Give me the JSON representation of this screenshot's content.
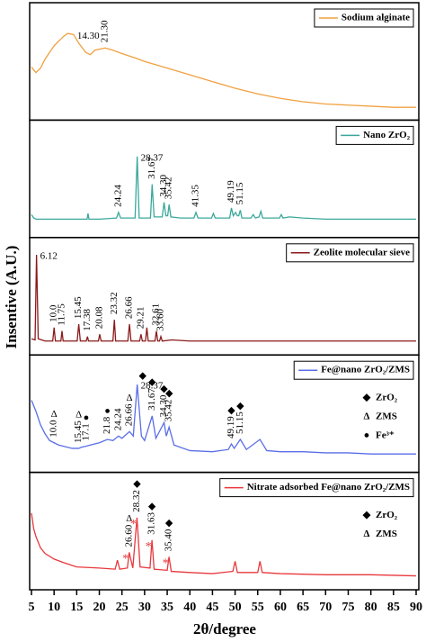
{
  "chart_data": {
    "type": "line",
    "xlabel": "2θ/degree",
    "ylabel": "Insentive (A.U.)",
    "xlim": [
      5,
      90
    ],
    "xticks": [
      5,
      10,
      15,
      20,
      25,
      30,
      35,
      40,
      45,
      50,
      55,
      60,
      65,
      70,
      75,
      80,
      85,
      90
    ],
    "panels": [
      {
        "name": "Sodium alginate",
        "color": "#f0a040",
        "ylim": [
          0,
          100
        ],
        "x": [
          5,
          6,
          7,
          8,
          10,
          12,
          13,
          14.3,
          15.5,
          17,
          18,
          19,
          21.3,
          23,
          25,
          28,
          30,
          35,
          40,
          45,
          50,
          55,
          60,
          65,
          70,
          75,
          80,
          85,
          90
        ],
        "values": [
          45,
          40,
          44,
          52,
          64,
          72,
          75,
          74,
          66,
          58,
          56,
          60,
          62,
          60,
          57,
          53,
          50,
          44,
          38,
          32,
          26,
          21,
          17,
          14,
          12,
          11,
          10,
          9,
          9
        ],
        "annotations": [
          {
            "x": 14.3,
            "label": "14.30"
          },
          {
            "x": 21.3,
            "label": "21.30"
          }
        ]
      },
      {
        "name": "Nano ZrO₂",
        "color": "#3aa89a",
        "ylim": [
          0,
          100
        ],
        "x": [
          5,
          5.5,
          6,
          8,
          10,
          15,
          17.3,
          17.5,
          17.7,
          20,
          23.8,
          24.24,
          24.7,
          27.9,
          28.37,
          28.8,
          30,
          31.3,
          31.67,
          32.1,
          33.9,
          34.3,
          34.7,
          35.1,
          35.42,
          35.8,
          38,
          40.9,
          41.35,
          41.8,
          44.8,
          45.2,
          45.6,
          48.8,
          49.19,
          49.6,
          50.1,
          50.5,
          50.8,
          51.15,
          51.5,
          53.5,
          54,
          54.5,
          55.3,
          55.7,
          56.1,
          59.8,
          60.2,
          60.6,
          62,
          65,
          70,
          75,
          80,
          85,
          90
        ],
        "values": [
          18,
          15,
          14,
          14,
          14,
          14,
          14,
          19,
          14,
          14,
          15,
          20,
          15,
          15,
          70,
          15,
          15,
          15,
          45,
          16,
          16,
          29,
          17,
          17,
          27,
          16,
          15,
          15,
          20,
          15,
          15,
          19,
          15,
          15,
          24,
          17,
          20,
          17,
          17,
          22,
          15,
          15,
          18,
          15,
          16,
          21,
          15,
          15,
          18,
          15,
          16,
          15,
          14,
          14,
          14,
          14,
          14
        ],
        "annotations": [
          {
            "x": 24.24,
            "label": "24.24"
          },
          {
            "x": 28.37,
            "label": "28.37"
          },
          {
            "x": 31.67,
            "label": "31.67"
          },
          {
            "x": 34.3,
            "label": "34.30"
          },
          {
            "x": 35.42,
            "label": "35.42"
          },
          {
            "x": 41.35,
            "label": "41.35"
          },
          {
            "x": 49.19,
            "label": "49.19"
          },
          {
            "x": 51.15,
            "label": "51.15"
          }
        ]
      },
      {
        "name": "Zeolite molecular sieve",
        "color": "#8b1a1a",
        "ylim": [
          0,
          100
        ],
        "x": [
          5,
          5.8,
          6.12,
          6.5,
          8,
          9.7,
          10,
          10.3,
          11.5,
          11.75,
          12,
          15.1,
          15.45,
          15.8,
          17.1,
          17.38,
          17.6,
          19.8,
          20.08,
          20.4,
          23,
          23.32,
          23.6,
          26.3,
          26.66,
          27,
          28.9,
          29.21,
          29.5,
          30.2,
          30.5,
          30.8,
          32.3,
          32.61,
          32.9,
          33.3,
          33.6,
          33.9,
          36,
          40,
          50,
          60,
          70,
          80,
          90
        ],
        "values": [
          12,
          11,
          87,
          12,
          10,
          10,
          22,
          10,
          10,
          19,
          10,
          10,
          25,
          10,
          10,
          14,
          10,
          10,
          16,
          10,
          10,
          29,
          10,
          10,
          25,
          10,
          10,
          16,
          10,
          10,
          22,
          10,
          10,
          19,
          10,
          10,
          14,
          10,
          11,
          10,
          10,
          10,
          10,
          10,
          10
        ],
        "annotations": [
          {
            "x": 6.12,
            "label": "6.12"
          },
          {
            "x": 10.0,
            "label": "10.0"
          },
          {
            "x": 11.75,
            "label": "11.75"
          },
          {
            "x": 15.45,
            "label": "15.45"
          },
          {
            "x": 17.38,
            "label": "17.38"
          },
          {
            "x": 20.08,
            "label": "20.08"
          },
          {
            "x": 23.32,
            "label": "23.32"
          },
          {
            "x": 26.66,
            "label": "26.66"
          },
          {
            "x": 29.21,
            "label": "29.21"
          },
          {
            "x": 32.61,
            "label": "32.61"
          },
          {
            "x": 33.6,
            "label": "33.60"
          }
        ]
      },
      {
        "name": "Fe@nano ZrO₂/ZMS",
        "color": "#5a6ee6",
        "ylim": [
          0,
          100
        ],
        "x": [
          5,
          6,
          7,
          8,
          9,
          10,
          11,
          12,
          13,
          14,
          15.45,
          16,
          17.1,
          18,
          20,
          21.8,
          23,
          24.24,
          25,
          26.66,
          27.5,
          28.37,
          29.3,
          30,
          31.67,
          32.5,
          34.3,
          34.8,
          35.42,
          36.5,
          40,
          45,
          48.5,
          49.19,
          49.8,
          51.15,
          52.5,
          55.5,
          57,
          60,
          65,
          70,
          75,
          80,
          85,
          90
        ],
        "values": [
          62,
          52,
          40,
          32,
          26,
          24,
          22,
          21,
          20,
          19,
          19,
          20,
          21,
          22,
          24,
          27,
          26,
          30,
          28,
          34,
          30,
          76,
          30,
          26,
          48,
          28,
          42,
          30,
          38,
          22,
          17,
          16,
          18,
          23,
          19,
          27,
          18,
          27,
          17,
          16,
          16,
          15,
          15,
          14,
          14,
          14
        ],
        "annotations": [
          {
            "x": 10.0,
            "label": "10.0",
            "symbol": "Δ"
          },
          {
            "x": 15.45,
            "label": "15.45",
            "symbol": "Δ"
          },
          {
            "x": 17.1,
            "label": "17.1",
            "symbol": "●"
          },
          {
            "x": 21.8,
            "label": "21.8",
            "symbol": "●"
          },
          {
            "x": 24.24,
            "label": "24.24"
          },
          {
            "x": 26.66,
            "label": "26.66",
            "symbol": "Δ"
          },
          {
            "x": 28.37,
            "label": "28.37",
            "symbol": "◆"
          },
          {
            "x": 31.67,
            "label": "31.67",
            "symbol": "◆"
          },
          {
            "x": 34.3,
            "label": "34.30",
            "symbol": "◆"
          },
          {
            "x": 35.42,
            "label": "35.42",
            "symbol": "◆"
          },
          {
            "x": 49.19,
            "label": "49.19",
            "symbol": "◆"
          },
          {
            "x": 51.15,
            "label": "51.15",
            "symbol": "◆"
          }
        ],
        "symbol_legend": [
          {
            "symbol": "◆",
            "label": "ZrO₂"
          },
          {
            "symbol": "Δ",
            "label": "ZMS"
          },
          {
            "symbol": "●",
            "label": "Fe³⁺"
          }
        ]
      },
      {
        "name": "Nitrate adsorbed Fe@nano ZrO₂/ZMS",
        "color": "#e8383d",
        "ylim": [
          0,
          100
        ],
        "x": [
          5,
          5.5,
          6,
          7,
          8,
          10,
          12,
          15,
          20,
          23.5,
          24,
          24.5,
          26.2,
          26.6,
          27.4,
          28.32,
          29,
          31.2,
          31.63,
          32.1,
          35,
          35.4,
          35.9,
          40,
          45,
          49.5,
          50,
          50.5,
          55,
          55.5,
          56,
          60,
          70,
          80,
          90
        ],
        "values": [
          66,
          52,
          45,
          35,
          30,
          25,
          22,
          18,
          17,
          16,
          24,
          16,
          17,
          31,
          17,
          62,
          18,
          17,
          42,
          16,
          15,
          27,
          14,
          13,
          12,
          14,
          23,
          13,
          13,
          23,
          13,
          12,
          11,
          11,
          10
        ],
        "peak_symbol": "*",
        "annotations": [
          {
            "x": 26.6,
            "label": "26.60",
            "symbol": "Δ"
          },
          {
            "x": 28.32,
            "label": "28.32",
            "symbol": "◆"
          },
          {
            "x": 31.63,
            "label": "31.63",
            "symbol": "◆"
          },
          {
            "x": 35.4,
            "label": "35.40",
            "symbol": "◆"
          }
        ],
        "symbol_legend": [
          {
            "symbol": "◆",
            "label": "ZrO₂"
          },
          {
            "symbol": "Δ",
            "label": "ZMS"
          }
        ]
      }
    ]
  }
}
